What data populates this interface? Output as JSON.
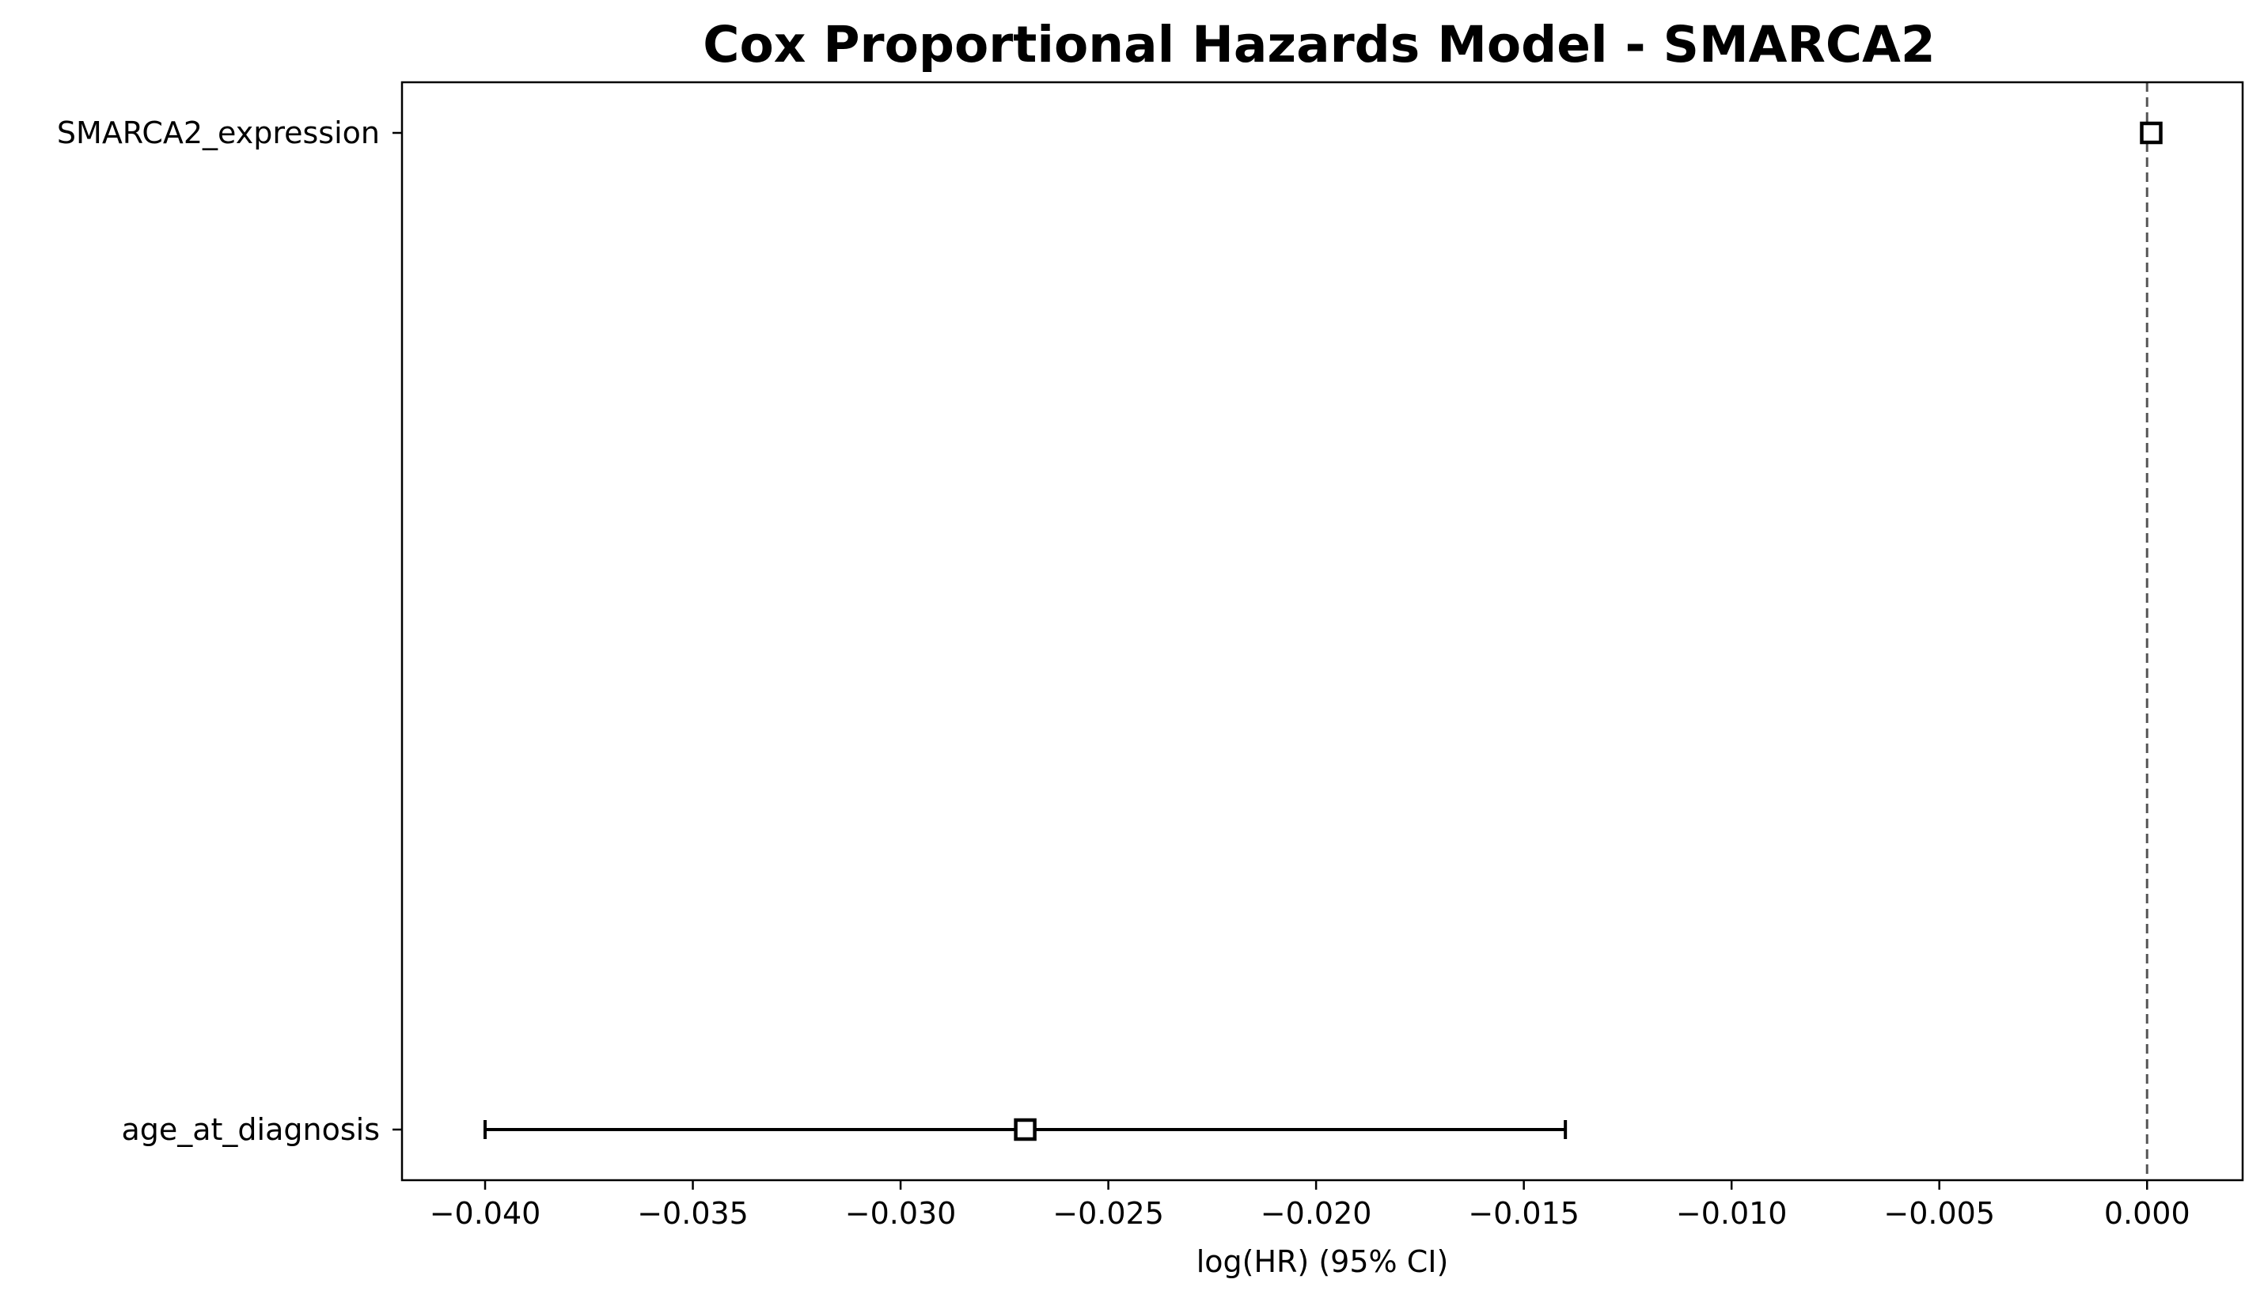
{
  "chart_data": {
    "type": "forest",
    "title": "Cox Proportional Hazards Model - SMARCA2",
    "xlabel": "log(HR) (95% CI)",
    "ylabel": "",
    "xlim": [
      -0.042,
      0.0023
    ],
    "xticks": [
      -0.04,
      -0.035,
      -0.03,
      -0.025,
      -0.02,
      -0.015,
      -0.01,
      -0.005,
      0.0
    ],
    "xtick_labels": [
      "−0.040",
      "−0.035",
      "−0.030",
      "−0.025",
      "−0.020",
      "−0.015",
      "−0.010",
      "−0.005",
      "0.000"
    ],
    "reference_line": 0.0,
    "covariates": [
      {
        "label": "SMARCA2_expression",
        "coef": 0.0001,
        "ci_lower": 0.0001,
        "ci_upper": 0.0001
      },
      {
        "label": "age_at_diagnosis",
        "coef": -0.027,
        "ci_lower": -0.04,
        "ci_upper": -0.014
      }
    ],
    "grid": false,
    "legend": "none",
    "colors": {
      "marker_edge": "#000000",
      "marker_fill": "#ffffff",
      "reference_line": "#555555"
    }
  }
}
